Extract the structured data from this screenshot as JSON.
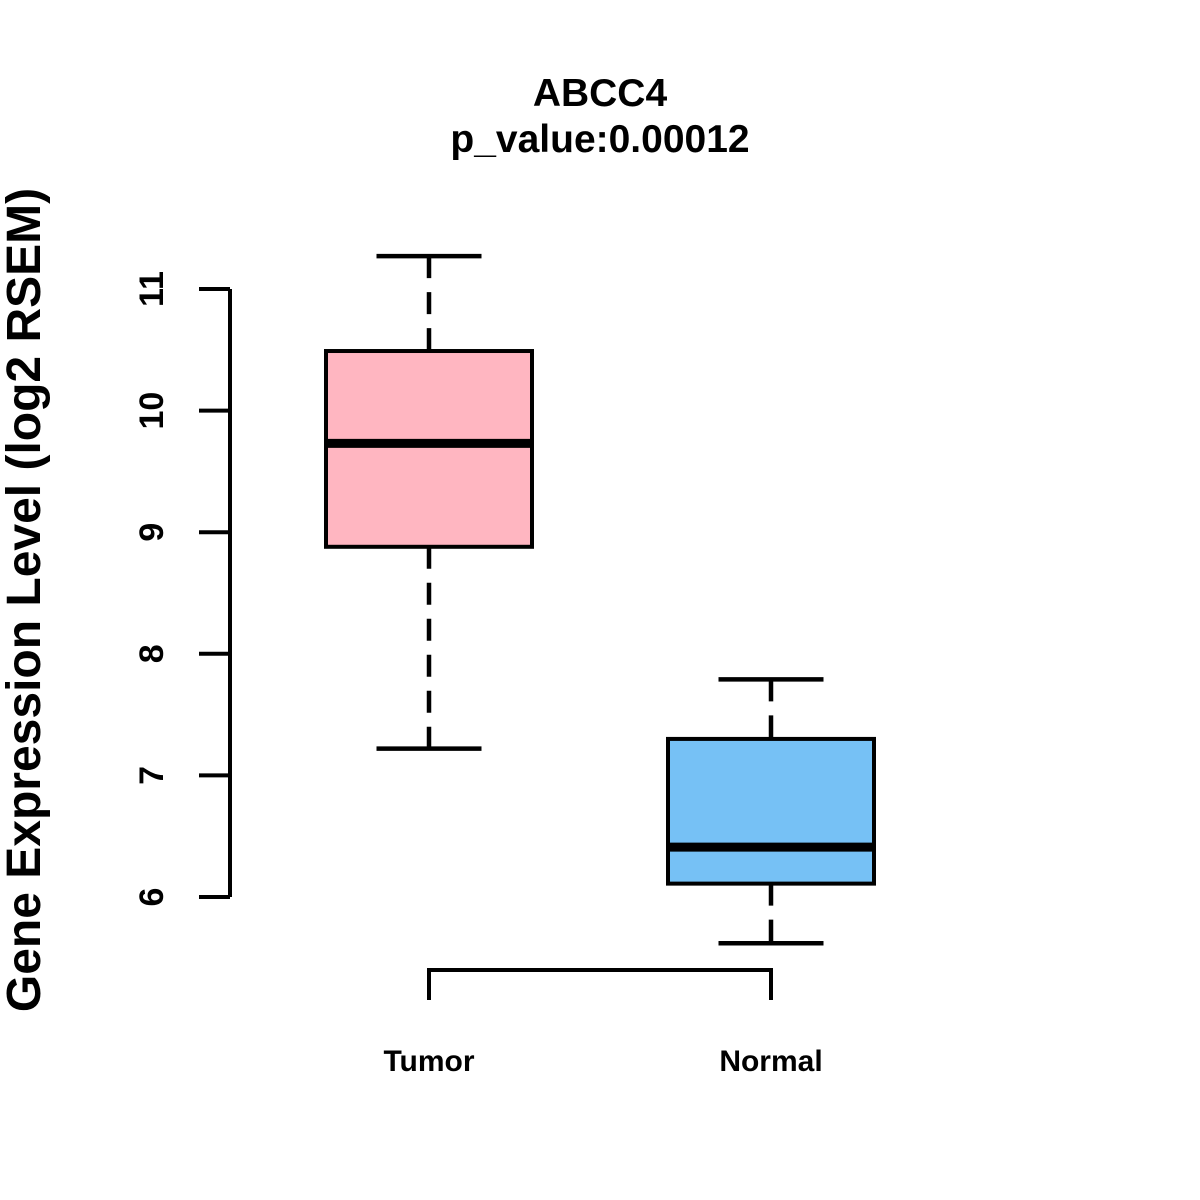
{
  "figure": {
    "title": "ABCC4",
    "subtitle": "p_value:0.00012",
    "ylabel": "Gene Expression Level (log2 RSEM)"
  },
  "chart_data": {
    "type": "boxplot",
    "title": "ABCC4",
    "subtitle": "p_value:0.00012",
    "ylabel": "Gene Expression Level (log2 RSEM)",
    "xlabel": "",
    "categories": [
      "Tumor",
      "Normal"
    ],
    "series": [
      {
        "name": "Tumor",
        "whisker_low": 7.22,
        "q1": 8.88,
        "median": 9.73,
        "q3": 10.49,
        "whisker_high": 11.27,
        "fill": "#FFB6C1"
      },
      {
        "name": "Normal",
        "whisker_low": 5.62,
        "q1": 6.11,
        "median": 6.41,
        "q3": 7.3,
        "whisker_high": 7.79,
        "fill": "#76C1F5"
      }
    ],
    "yticks": [
      6,
      7,
      8,
      9,
      10,
      11
    ],
    "ylim": [
      5.5,
      11.35
    ],
    "grid": false,
    "legend": "none",
    "stroke_color": "#000000",
    "background": "#FFFFFF",
    "whisker_style": "dashed"
  }
}
